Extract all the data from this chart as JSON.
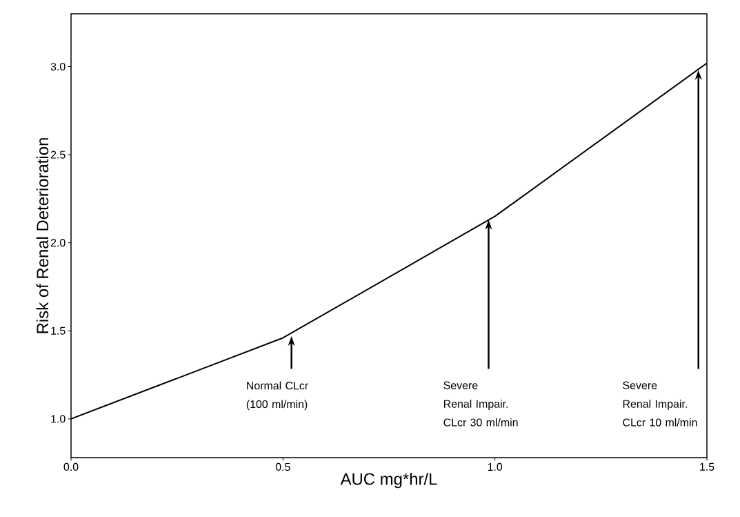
{
  "chart_data": {
    "type": "line",
    "xlabel": "AUC mg*hr/L",
    "ylabel": "Risk of Renal Deterioration",
    "x": [
      0,
      0.5,
      1.0,
      1.5
    ],
    "series": [
      {
        "color": "#000000",
        "values": [
          1.0,
          1.46,
          2.15,
          3.02
        ]
      }
    ],
    "xlim": [
      0,
      1.5
    ],
    "ylim": [
      0.78,
      3.3
    ],
    "xticks": [
      {
        "value": 0,
        "label": "0.0"
      },
      {
        "value": 0.5,
        "label": "0.5"
      },
      {
        "value": 1.0,
        "label": "1.0"
      },
      {
        "value": 1.5,
        "label": "1.5"
      }
    ],
    "yticks": [
      {
        "value": 1.0,
        "label": "1.0"
      },
      {
        "value": 1.5,
        "label": "1.5"
      },
      {
        "value": 2.0,
        "label": "2.0"
      },
      {
        "value": 2.5,
        "label": "2.5"
      },
      {
        "value": 3.0,
        "label": "3.0"
      }
    ],
    "grid": false,
    "marker": "none",
    "line_style": "solid",
    "annotations": [
      {
        "text": "Normal CLcr (100 ml/min)",
        "x": 0.52,
        "y": 1.47
      },
      {
        "text": "Severe Renal Impair. CLcr 30 ml/min",
        "x": 0.985,
        "y": 2.13
      },
      {
        "text": "Severe Renal Impair. CLcr 10 ml/min",
        "x": 1.48,
        "y": 2.98
      }
    ]
  }
}
